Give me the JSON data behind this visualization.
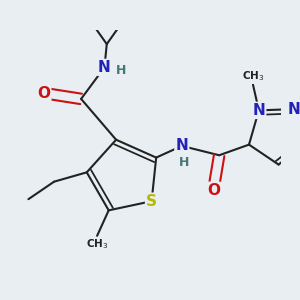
{
  "bg_color": "#e8eef2",
  "bond_color": "#222222",
  "bond_width": 1.5,
  "atom_colors": {
    "S": "#b8b800",
    "N": "#2222bb",
    "O": "#cc1111",
    "H": "#447777",
    "C": "#222222"
  }
}
